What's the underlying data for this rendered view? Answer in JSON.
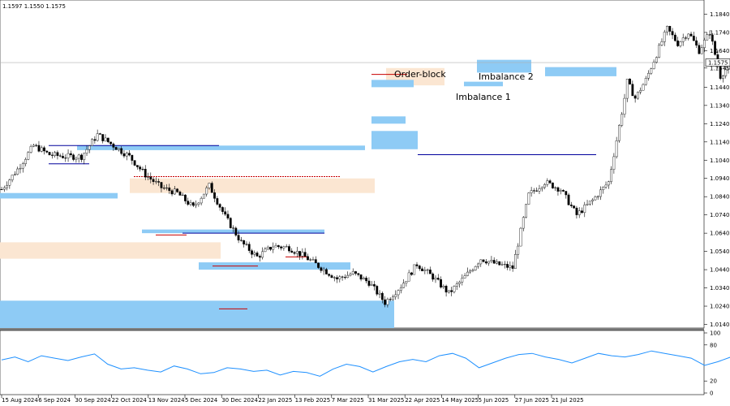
{
  "header": {
    "ohlc_readout": "1.1597 1.1550 1.1575"
  },
  "colors": {
    "bull_candle": "#000000",
    "bear_candle": "#000000",
    "imbalance_zone": "#8ecbf5",
    "order_block_zone": "#fbe6d2",
    "support_line": "#00009c",
    "resistance_line": "#c80000",
    "rsi_line": "#1e90ff",
    "current_price_line": "#b0b0b0"
  },
  "chart_data": {
    "type": "candlestick",
    "symbol": "",
    "price_axis": {
      "range": [
        1.012,
        1.19
      ],
      "ticks": [
        "1.1840",
        "1.1740",
        "1.1640",
        "1.1545",
        "1.1440",
        "1.1340",
        "1.1240",
        "1.1140",
        "1.1040",
        "1.0940",
        "1.0840",
        "1.0740",
        "1.0640",
        "1.0540",
        "1.0440",
        "1.0340",
        "1.0240",
        "1.0140"
      ],
      "current_price": "1.1575"
    },
    "time_axis": {
      "labels": [
        "15 Aug 2024",
        "6 Sep 2024",
        "30 Sep 2024",
        "22 Oct 2024",
        "13 Nov 2024",
        "5 Dec 2024",
        "30 Dec 2024",
        "22 Jan 2025",
        "13 Feb 2025",
        "7 Mar 2025",
        "31 Mar 2025",
        "22 Apr 2025",
        "14 May 2025",
        "5 Jun 2025",
        "27 Jun 2025",
        "21 Jul 2025"
      ],
      "bars": 234
    },
    "close_path": [
      [
        0,
        1.088
      ],
      [
        6,
        1.099
      ],
      [
        12,
        1.112
      ],
      [
        18,
        1.107
      ],
      [
        24,
        1.106
      ],
      [
        30,
        1.106
      ],
      [
        36,
        1.118
      ],
      [
        42,
        1.112
      ],
      [
        48,
        1.106
      ],
      [
        54,
        1.096
      ],
      [
        60,
        1.089
      ],
      [
        66,
        1.086
      ],
      [
        72,
        1.078
      ],
      [
        78,
        1.09
      ],
      [
        84,
        1.073
      ],
      [
        90,
        1.059
      ],
      [
        96,
        1.051
      ],
      [
        102,
        1.057
      ],
      [
        108,
        1.056
      ],
      [
        114,
        1.051
      ],
      [
        120,
        1.045
      ],
      [
        126,
        1.039
      ],
      [
        132,
        1.042
      ],
      [
        138,
        1.037
      ],
      [
        144,
        1.026
      ],
      [
        150,
        1.035
      ],
      [
        156,
        1.047
      ],
      [
        162,
        1.04
      ],
      [
        168,
        1.031
      ],
      [
        174,
        1.04
      ],
      [
        180,
        1.05
      ],
      [
        186,
        1.047
      ],
      [
        192,
        1.045
      ],
      [
        198,
        1.085
      ],
      [
        204,
        1.092
      ],
      [
        210,
        1.088
      ],
      [
        216,
        1.074
      ],
      [
        222,
        1.082
      ],
      [
        228,
        1.092
      ],
      [
        234,
        1.138
      ]
    ],
    "rsi": {
      "range": [
        0,
        100
      ],
      "ticks": [
        "100",
        "80",
        "20",
        "0"
      ],
      "values": [
        55,
        60,
        52,
        62,
        58,
        54,
        60,
        65,
        48,
        40,
        42,
        38,
        35,
        45,
        40,
        32,
        34,
        42,
        40,
        36,
        38,
        30,
        36,
        34,
        28,
        40,
        48,
        44,
        35,
        44,
        52,
        56,
        52,
        62,
        66,
        58,
        42,
        50,
        58,
        64,
        66,
        60,
        56,
        50,
        58,
        66,
        62,
        60,
        64,
        70,
        66,
        62,
        58,
        46,
        52,
        60
      ]
    },
    "zones": {
      "imbalance": [
        {
          "price_top": 1.112,
          "price_bottom": 1.1095
        },
        {
          "price_top": 1.086,
          "price_bottom": 1.083
        },
        {
          "price_top": 1.027,
          "price_bottom": 1.012
        },
        {
          "price_top": 1.066,
          "price_bottom": 1.064
        },
        {
          "price_top": 1.048,
          "price_bottom": 1.044
        },
        {
          "price_top": 1.148,
          "price_bottom": 1.144
        },
        {
          "price_top": 1.147,
          "price_bottom": 1.1445
        },
        {
          "price_top": 1.128,
          "price_bottom": 1.124
        },
        {
          "price_top": 1.12,
          "price_bottom": 1.11
        },
        {
          "price_top": 1.159,
          "price_bottom": 1.152
        },
        {
          "price_top": 1.155,
          "price_bottom": 1.15
        }
      ],
      "order_block": [
        {
          "price_top": 1.059,
          "price_bottom": 1.05
        },
        {
          "price_top": 1.094,
          "price_bottom": 1.086
        },
        {
          "price_top": 1.1545,
          "price_bottom": 1.145
        }
      ]
    },
    "annotations": [
      {
        "text": "Order-block"
      },
      {
        "text": "Imbalance 2"
      },
      {
        "text": "Imbalance 1"
      }
    ]
  }
}
